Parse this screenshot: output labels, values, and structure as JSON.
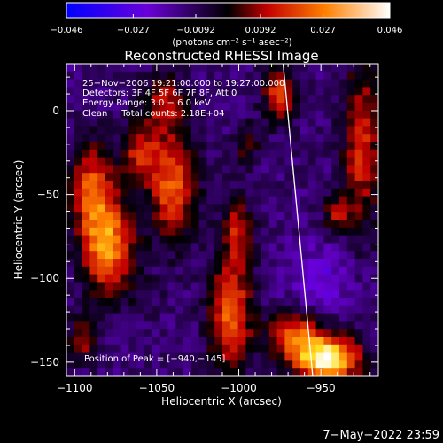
{
  "chart_data": {
    "type": "heatmap",
    "title": "Reconstructed RHESSI Image",
    "xlabel": "Heliocentric X (arcsec)",
    "ylabel": "Heliocentric Y (arcsec)",
    "xlim": [
      -1105,
      -915
    ],
    "ylim": [
      -158,
      28
    ],
    "x_ticks": [
      -1100,
      -1050,
      -1000,
      -950
    ],
    "y_ticks": [
      0,
      -50,
      -100,
      -150
    ],
    "x_tick_labels": [
      "−1100",
      "−1050",
      "−1000",
      "−950"
    ],
    "y_tick_labels": [
      "0",
      "−50",
      "−100",
      "−150"
    ],
    "colorbar": {
      "min": -0.046,
      "max": 0.046,
      "ticks": [
        -0.046,
        -0.027,
        -0.0092,
        0.0092,
        0.027,
        0.046
      ],
      "tick_labels": [
        "−0.046",
        "−0.027",
        "−0.0092",
        "0.0092",
        "0.027",
        "0.046"
      ],
      "units_label": "(photons cm⁻² s⁻¹ asec⁻²)"
    },
    "annotations": [
      "25−Nov−2006 19:21:00.000 to 19:27:00.000",
      "Detectors: 3F 4F 5F 6F 7F 8F, Att 0",
      "Energy Range: 3.0 − 6.0 keV",
      "Clean     Total counts: 2.18E+04"
    ],
    "peak_label": "Position of Peak = [−940,−145]",
    "peak": [
      -940,
      -145
    ],
    "limb_line": [
      [
        -973,
        28
      ],
      [
        -955,
        -158
      ]
    ],
    "hotspots": [
      {
        "x": -1080,
        "y": -80,
        "v": 0.03,
        "sx": 11,
        "sy": 20
      },
      {
        "x": -1090,
        "y": -45,
        "v": 0.018,
        "sx": 9,
        "sy": 18
      },
      {
        "x": -1040,
        "y": -45,
        "v": 0.022,
        "sx": 10,
        "sy": 22
      },
      {
        "x": -1060,
        "y": -25,
        "v": 0.014,
        "sx": 8,
        "sy": 12
      },
      {
        "x": -1045,
        "y": 5,
        "v": 0.01,
        "sx": 9,
        "sy": 12
      },
      {
        "x": -1005,
        "y": -120,
        "v": 0.024,
        "sx": 9,
        "sy": 25
      },
      {
        "x": -1000,
        "y": -70,
        "v": 0.01,
        "sx": 6,
        "sy": 12
      },
      {
        "x": -975,
        "y": 10,
        "v": 0.018,
        "sx": 7,
        "sy": 12
      },
      {
        "x": -995,
        "y": -20,
        "v": 0.006,
        "sx": 5,
        "sy": 8
      },
      {
        "x": -945,
        "y": -148,
        "v": 0.046,
        "sx": 13,
        "sy": 9
      },
      {
        "x": -965,
        "y": -135,
        "v": 0.022,
        "sx": 12,
        "sy": 10
      },
      {
        "x": -925,
        "y": -20,
        "v": 0.016,
        "sx": 8,
        "sy": 35
      },
      {
        "x": -940,
        "y": -62,
        "v": 0.008,
        "sx": 6,
        "sy": 8
      },
      {
        "x": -1095,
        "y": -135,
        "v": 0.01,
        "sx": 6,
        "sy": 10
      }
    ],
    "coldspots": [
      {
        "x": -950,
        "y": -100,
        "v": -0.024,
        "sx": 14,
        "sy": 14
      },
      {
        "x": -1010,
        "y": -40,
        "v": -0.01,
        "sx": 10,
        "sy": 10
      },
      {
        "x": -1060,
        "y": -110,
        "v": -0.008,
        "sx": 10,
        "sy": 10
      }
    ]
  },
  "footer": {
    "date": "7−May−2022 23:59"
  }
}
